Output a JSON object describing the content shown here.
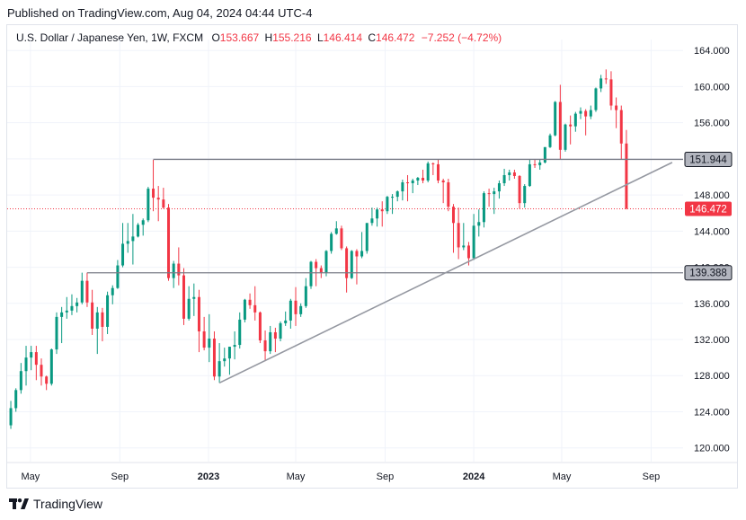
{
  "header": {
    "published": "Published on TradingView.com, Aug 04, 2024 04:44 UTC-4"
  },
  "legend": {
    "symbol": "U.S. Dollar / Japanese Yen, 1W, FXCM",
    "o_label": "O",
    "o_value": "153.667",
    "h_label": "H",
    "h_value": "155.216",
    "l_label": "L",
    "l_value": "146.414",
    "c_label": "C",
    "c_value": "146.472",
    "change": "−7.252 (−4.72%)"
  },
  "brand": {
    "name": "TradingView"
  },
  "colors": {
    "up": "#089981",
    "down": "#f23645",
    "grid": "#f0f3fa",
    "level_line": "#787b86",
    "trend_line": "#9598a1",
    "price_tag": "#f23645",
    "level_tag": "#b2b5be"
  },
  "chart_data": {
    "type": "candlestick",
    "y_range": [
      118,
      167
    ],
    "y_ticks": [
      "120.000",
      "124.000",
      "128.000",
      "132.000",
      "136.000",
      "140.000",
      "144.000",
      "148.000",
      "152.000",
      "156.000",
      "160.000",
      "164.000"
    ],
    "x_ticks": [
      {
        "label": "May",
        "date": "2022-05-01",
        "bold": false
      },
      {
        "label": "Sep",
        "date": "2022-09-01",
        "bold": false
      },
      {
        "label": "2023",
        "date": "2023-01-01",
        "bold": true
      },
      {
        "label": "May",
        "date": "2023-05-01",
        "bold": false
      },
      {
        "label": "Sep",
        "date": "2023-09-01",
        "bold": false
      },
      {
        "label": "2024",
        "date": "2024-01-01",
        "bold": true
      },
      {
        "label": "May",
        "date": "2024-05-01",
        "bold": false
      },
      {
        "label": "Sep",
        "date": "2024-09-01",
        "bold": false
      }
    ],
    "x_range": [
      "2022-03-30",
      "2024-10-15"
    ],
    "last_price": {
      "value": 146.472,
      "label": "146.472"
    },
    "levels": [
      {
        "value": 151.944,
        "label": "151.944",
        "from": "2022-10-17"
      },
      {
        "value": 139.388,
        "label": "139.388",
        "from": "2022-07-18"
      }
    ],
    "trendline": {
      "from": {
        "date": "2023-01-16",
        "value": 127.2
      },
      "to": {
        "date": "2024-09-30",
        "value": 151.6
      }
    },
    "candles": [
      {
        "d": "2022-04-04",
        "o": 122.5,
        "h": 125.2,
        "l": 122.1,
        "c": 124.4
      },
      {
        "d": "2022-04-11",
        "o": 124.4,
        "h": 126.6,
        "l": 124.0,
        "c": 126.4
      },
      {
        "d": "2022-04-18",
        "o": 126.4,
        "h": 129.4,
        "l": 126.0,
        "c": 128.5
      },
      {
        "d": "2022-04-25",
        "o": 128.5,
        "h": 131.3,
        "l": 126.9,
        "c": 130.0
      },
      {
        "d": "2022-05-02",
        "o": 130.0,
        "h": 131.3,
        "l": 128.6,
        "c": 130.6
      },
      {
        "d": "2022-05-09",
        "o": 130.6,
        "h": 131.3,
        "l": 127.5,
        "c": 129.2
      },
      {
        "d": "2022-05-16",
        "o": 129.2,
        "h": 129.9,
        "l": 126.9,
        "c": 127.9
      },
      {
        "d": "2022-05-23",
        "o": 127.9,
        "h": 128.0,
        "l": 126.4,
        "c": 127.1
      },
      {
        "d": "2022-05-30",
        "o": 127.1,
        "h": 131.0,
        "l": 126.9,
        "c": 130.9
      },
      {
        "d": "2022-06-06",
        "o": 130.9,
        "h": 135.0,
        "l": 130.4,
        "c": 134.5
      },
      {
        "d": "2022-06-13",
        "o": 134.5,
        "h": 135.6,
        "l": 131.6,
        "c": 135.0
      },
      {
        "d": "2022-06-20",
        "o": 135.0,
        "h": 136.7,
        "l": 134.3,
        "c": 135.2
      },
      {
        "d": "2022-06-27",
        "o": 135.2,
        "h": 137.0,
        "l": 134.7,
        "c": 135.7
      },
      {
        "d": "2022-07-04",
        "o": 135.7,
        "h": 136.6,
        "l": 135.0,
        "c": 136.1
      },
      {
        "d": "2022-07-11",
        "o": 136.1,
        "h": 139.4,
        "l": 135.9,
        "c": 138.5
      },
      {
        "d": "2022-07-18",
        "o": 138.5,
        "h": 139.4,
        "l": 135.6,
        "c": 136.1
      },
      {
        "d": "2022-07-25",
        "o": 136.1,
        "h": 137.5,
        "l": 132.5,
        "c": 133.2
      },
      {
        "d": "2022-08-01",
        "o": 133.2,
        "h": 135.6,
        "l": 130.4,
        "c": 135.0
      },
      {
        "d": "2022-08-08",
        "o": 135.0,
        "h": 135.5,
        "l": 131.8,
        "c": 133.4
      },
      {
        "d": "2022-08-15",
        "o": 133.4,
        "h": 137.3,
        "l": 132.6,
        "c": 136.9
      },
      {
        "d": "2022-08-22",
        "o": 136.9,
        "h": 138.0,
        "l": 135.9,
        "c": 137.7
      },
      {
        "d": "2022-08-29",
        "o": 137.7,
        "h": 140.8,
        "l": 137.6,
        "c": 140.2
      },
      {
        "d": "2022-09-05",
        "o": 140.2,
        "h": 144.9,
        "l": 140.0,
        "c": 142.6
      },
      {
        "d": "2022-09-12",
        "o": 142.6,
        "h": 144.9,
        "l": 141.6,
        "c": 142.9
      },
      {
        "d": "2022-09-19",
        "o": 142.9,
        "h": 145.9,
        "l": 140.3,
        "c": 143.4
      },
      {
        "d": "2022-09-26",
        "o": 143.4,
        "h": 144.9,
        "l": 143.3,
        "c": 144.7
      },
      {
        "d": "2022-10-03",
        "o": 144.7,
        "h": 145.4,
        "l": 143.5,
        "c": 145.2
      },
      {
        "d": "2022-10-10",
        "o": 145.2,
        "h": 148.9,
        "l": 145.0,
        "c": 148.7
      },
      {
        "d": "2022-10-17",
        "o": 148.7,
        "h": 151.9,
        "l": 146.2,
        "c": 147.7
      },
      {
        "d": "2022-10-24",
        "o": 147.7,
        "h": 149.0,
        "l": 145.1,
        "c": 147.5
      },
      {
        "d": "2022-10-31",
        "o": 147.5,
        "h": 148.8,
        "l": 146.5,
        "c": 146.6
      },
      {
        "d": "2022-11-07",
        "o": 146.6,
        "h": 147.0,
        "l": 138.5,
        "c": 138.8
      },
      {
        "d": "2022-11-14",
        "o": 138.8,
        "h": 140.7,
        "l": 137.7,
        "c": 140.4
      },
      {
        "d": "2022-11-21",
        "o": 140.4,
        "h": 142.2,
        "l": 138.0,
        "c": 139.1
      },
      {
        "d": "2022-11-28",
        "o": 139.1,
        "h": 139.9,
        "l": 133.6,
        "c": 134.3
      },
      {
        "d": "2022-12-05",
        "o": 134.3,
        "h": 137.9,
        "l": 134.1,
        "c": 136.5
      },
      {
        "d": "2022-12-12",
        "o": 136.5,
        "h": 138.2,
        "l": 134.6,
        "c": 136.7
      },
      {
        "d": "2022-12-19",
        "o": 136.7,
        "h": 137.5,
        "l": 130.6,
        "c": 132.9
      },
      {
        "d": "2022-12-26",
        "o": 132.9,
        "h": 134.5,
        "l": 130.8,
        "c": 131.1
      },
      {
        "d": "2023-01-02",
        "o": 131.1,
        "h": 134.8,
        "l": 129.5,
        "c": 132.1
      },
      {
        "d": "2023-01-09",
        "o": 132.1,
        "h": 132.9,
        "l": 127.5,
        "c": 127.9
      },
      {
        "d": "2023-01-16",
        "o": 127.9,
        "h": 131.6,
        "l": 127.2,
        "c": 129.6
      },
      {
        "d": "2023-01-23",
        "o": 129.6,
        "h": 131.1,
        "l": 129.0,
        "c": 129.9
      },
      {
        "d": "2023-01-30",
        "o": 129.9,
        "h": 131.2,
        "l": 128.1,
        "c": 131.2
      },
      {
        "d": "2023-02-06",
        "o": 131.2,
        "h": 132.9,
        "l": 129.8,
        "c": 131.4
      },
      {
        "d": "2023-02-13",
        "o": 131.4,
        "h": 135.0,
        "l": 131.0,
        "c": 134.2
      },
      {
        "d": "2023-02-20",
        "o": 134.2,
        "h": 136.5,
        "l": 133.9,
        "c": 136.4
      },
      {
        "d": "2023-02-27",
        "o": 136.4,
        "h": 137.1,
        "l": 135.4,
        "c": 135.8
      },
      {
        "d": "2023-03-06",
        "o": 135.8,
        "h": 137.9,
        "l": 134.1,
        "c": 135.0
      },
      {
        "d": "2023-03-13",
        "o": 135.0,
        "h": 135.1,
        "l": 131.6,
        "c": 131.9
      },
      {
        "d": "2023-03-20",
        "o": 131.9,
        "h": 133.0,
        "l": 129.6,
        "c": 130.7
      },
      {
        "d": "2023-03-27",
        "o": 130.7,
        "h": 133.5,
        "l": 130.4,
        "c": 132.8
      },
      {
        "d": "2023-04-03",
        "o": 132.8,
        "h": 133.3,
        "l": 130.6,
        "c": 132.1
      },
      {
        "d": "2023-04-10",
        "o": 132.1,
        "h": 134.0,
        "l": 131.8,
        "c": 133.8
      },
      {
        "d": "2023-04-17",
        "o": 133.8,
        "h": 135.1,
        "l": 133.5,
        "c": 134.1
      },
      {
        "d": "2023-04-24",
        "o": 134.1,
        "h": 136.5,
        "l": 133.2,
        "c": 136.3
      },
      {
        "d": "2023-05-01",
        "o": 136.3,
        "h": 137.8,
        "l": 133.5,
        "c": 134.8
      },
      {
        "d": "2023-05-08",
        "o": 134.8,
        "h": 136.0,
        "l": 134.5,
        "c": 135.7
      },
      {
        "d": "2023-05-15",
        "o": 135.7,
        "h": 138.8,
        "l": 135.5,
        "c": 137.9
      },
      {
        "d": "2023-05-22",
        "o": 137.9,
        "h": 140.7,
        "l": 137.6,
        "c": 140.6
      },
      {
        "d": "2023-05-29",
        "o": 140.6,
        "h": 140.9,
        "l": 137.9,
        "c": 139.9
      },
      {
        "d": "2023-06-05",
        "o": 139.9,
        "h": 140.2,
        "l": 138.8,
        "c": 139.4
      },
      {
        "d": "2023-06-12",
        "o": 139.4,
        "h": 141.9,
        "l": 139.0,
        "c": 141.8
      },
      {
        "d": "2023-06-19",
        "o": 141.8,
        "h": 143.9,
        "l": 141.5,
        "c": 143.7
      },
      {
        "d": "2023-06-26",
        "o": 143.7,
        "h": 145.1,
        "l": 143.6,
        "c": 144.3
      },
      {
        "d": "2023-07-03",
        "o": 144.3,
        "h": 144.6,
        "l": 141.9,
        "c": 142.1
      },
      {
        "d": "2023-07-10",
        "o": 142.1,
        "h": 142.3,
        "l": 137.2,
        "c": 138.8
      },
      {
        "d": "2023-07-17",
        "o": 138.8,
        "h": 141.9,
        "l": 138.7,
        "c": 141.8
      },
      {
        "d": "2023-07-24",
        "o": 141.8,
        "h": 142.0,
        "l": 138.1,
        "c": 141.2
      },
      {
        "d": "2023-07-31",
        "o": 141.2,
        "h": 143.9,
        "l": 141.0,
        "c": 141.8
      },
      {
        "d": "2023-08-07",
        "o": 141.8,
        "h": 144.9,
        "l": 141.5,
        "c": 144.9
      },
      {
        "d": "2023-08-14",
        "o": 144.9,
        "h": 146.6,
        "l": 144.6,
        "c": 145.4
      },
      {
        "d": "2023-08-21",
        "o": 145.4,
        "h": 146.6,
        "l": 144.5,
        "c": 146.4
      },
      {
        "d": "2023-08-28",
        "o": 146.4,
        "h": 147.3,
        "l": 144.5,
        "c": 146.2
      },
      {
        "d": "2023-09-04",
        "o": 146.2,
        "h": 147.9,
        "l": 145.9,
        "c": 147.8
      },
      {
        "d": "2023-09-11",
        "o": 147.8,
        "h": 148.1,
        "l": 145.9,
        "c": 147.8
      },
      {
        "d": "2023-09-18",
        "o": 147.8,
        "h": 148.5,
        "l": 147.3,
        "c": 148.4
      },
      {
        "d": "2023-09-25",
        "o": 148.4,
        "h": 149.7,
        "l": 147.4,
        "c": 149.4
      },
      {
        "d": "2023-10-02",
        "o": 149.4,
        "h": 150.2,
        "l": 147.3,
        "c": 149.3
      },
      {
        "d": "2023-10-09",
        "o": 149.3,
        "h": 149.8,
        "l": 148.2,
        "c": 149.6
      },
      {
        "d": "2023-10-16",
        "o": 149.6,
        "h": 150.0,
        "l": 149.1,
        "c": 149.9
      },
      {
        "d": "2023-10-23",
        "o": 149.9,
        "h": 150.8,
        "l": 149.3,
        "c": 149.6
      },
      {
        "d": "2023-10-30",
        "o": 149.6,
        "h": 151.7,
        "l": 149.4,
        "c": 151.5
      },
      {
        "d": "2023-11-06",
        "o": 151.5,
        "h": 151.6,
        "l": 150.2,
        "c": 151.4
      },
      {
        "d": "2023-11-13",
        "o": 151.4,
        "h": 151.9,
        "l": 149.3,
        "c": 149.6
      },
      {
        "d": "2023-11-20",
        "o": 149.6,
        "h": 149.8,
        "l": 147.1,
        "c": 149.4
      },
      {
        "d": "2023-11-27",
        "o": 149.4,
        "h": 149.8,
        "l": 146.2,
        "c": 146.7
      },
      {
        "d": "2023-12-04",
        "o": 146.7,
        "h": 147.0,
        "l": 141.6,
        "c": 144.9
      },
      {
        "d": "2023-12-11",
        "o": 144.9,
        "h": 146.6,
        "l": 140.9,
        "c": 142.2
      },
      {
        "d": "2023-12-18",
        "o": 142.2,
        "h": 144.9,
        "l": 141.9,
        "c": 142.4
      },
      {
        "d": "2023-12-25",
        "o": 142.4,
        "h": 142.8,
        "l": 140.2,
        "c": 141.0
      },
      {
        "d": "2024-01-01",
        "o": 141.0,
        "h": 145.9,
        "l": 140.8,
        "c": 144.6
      },
      {
        "d": "2024-01-08",
        "o": 144.6,
        "h": 146.4,
        "l": 143.4,
        "c": 145.0
      },
      {
        "d": "2024-01-15",
        "o": 145.0,
        "h": 148.4,
        "l": 144.4,
        "c": 148.2
      },
      {
        "d": "2024-01-22",
        "o": 148.2,
        "h": 148.7,
        "l": 146.7,
        "c": 148.1
      },
      {
        "d": "2024-01-29",
        "o": 148.1,
        "h": 148.8,
        "l": 145.9,
        "c": 148.4
      },
      {
        "d": "2024-02-05",
        "o": 148.4,
        "h": 149.6,
        "l": 147.6,
        "c": 149.3
      },
      {
        "d": "2024-02-12",
        "o": 149.3,
        "h": 150.9,
        "l": 149.0,
        "c": 150.2
      },
      {
        "d": "2024-02-19",
        "o": 150.2,
        "h": 150.8,
        "l": 149.6,
        "c": 150.5
      },
      {
        "d": "2024-02-26",
        "o": 150.5,
        "h": 150.8,
        "l": 149.8,
        "c": 150.1
      },
      {
        "d": "2024-03-04",
        "o": 150.1,
        "h": 150.2,
        "l": 146.5,
        "c": 147.1
      },
      {
        "d": "2024-03-11",
        "o": 147.1,
        "h": 149.2,
        "l": 146.6,
        "c": 149.0
      },
      {
        "d": "2024-03-18",
        "o": 149.0,
        "h": 151.9,
        "l": 148.9,
        "c": 151.4
      },
      {
        "d": "2024-03-25",
        "o": 151.4,
        "h": 151.9,
        "l": 151.0,
        "c": 151.3
      },
      {
        "d": "2024-04-01",
        "o": 151.3,
        "h": 151.9,
        "l": 150.8,
        "c": 151.6
      },
      {
        "d": "2024-04-08",
        "o": 151.6,
        "h": 153.3,
        "l": 151.5,
        "c": 153.3
      },
      {
        "d": "2024-04-15",
        "o": 153.3,
        "h": 154.8,
        "l": 153.2,
        "c": 154.6
      },
      {
        "d": "2024-04-22",
        "o": 154.6,
        "h": 158.4,
        "l": 154.5,
        "c": 158.3
      },
      {
        "d": "2024-04-29",
        "o": 158.3,
        "h": 160.2,
        "l": 151.9,
        "c": 153.0
      },
      {
        "d": "2024-05-06",
        "o": 153.0,
        "h": 155.9,
        "l": 152.8,
        "c": 155.8
      },
      {
        "d": "2024-05-13",
        "o": 155.8,
        "h": 156.8,
        "l": 153.6,
        "c": 155.6
      },
      {
        "d": "2024-05-20",
        "o": 155.6,
        "h": 157.2,
        "l": 155.0,
        "c": 157.0
      },
      {
        "d": "2024-05-27",
        "o": 157.0,
        "h": 157.7,
        "l": 156.4,
        "c": 157.3
      },
      {
        "d": "2024-06-03",
        "o": 157.3,
        "h": 157.5,
        "l": 154.6,
        "c": 156.7
      },
      {
        "d": "2024-06-10",
        "o": 156.7,
        "h": 157.9,
        "l": 156.4,
        "c": 157.4
      },
      {
        "d": "2024-06-17",
        "o": 157.4,
        "h": 159.9,
        "l": 157.2,
        "c": 159.8
      },
      {
        "d": "2024-06-24",
        "o": 159.8,
        "h": 161.3,
        "l": 159.4,
        "c": 160.9
      },
      {
        "d": "2024-07-01",
        "o": 160.9,
        "h": 161.9,
        "l": 160.3,
        "c": 160.8
      },
      {
        "d": "2024-07-08",
        "o": 160.8,
        "h": 161.7,
        "l": 157.4,
        "c": 157.9
      },
      {
        "d": "2024-07-15",
        "o": 157.9,
        "h": 158.8,
        "l": 155.4,
        "c": 157.4
      },
      {
        "d": "2024-07-22",
        "o": 157.4,
        "h": 157.9,
        "l": 151.9,
        "c": 153.7
      },
      {
        "d": "2024-07-29",
        "o": 153.7,
        "h": 155.2,
        "l": 146.4,
        "c": 146.5
      }
    ]
  }
}
